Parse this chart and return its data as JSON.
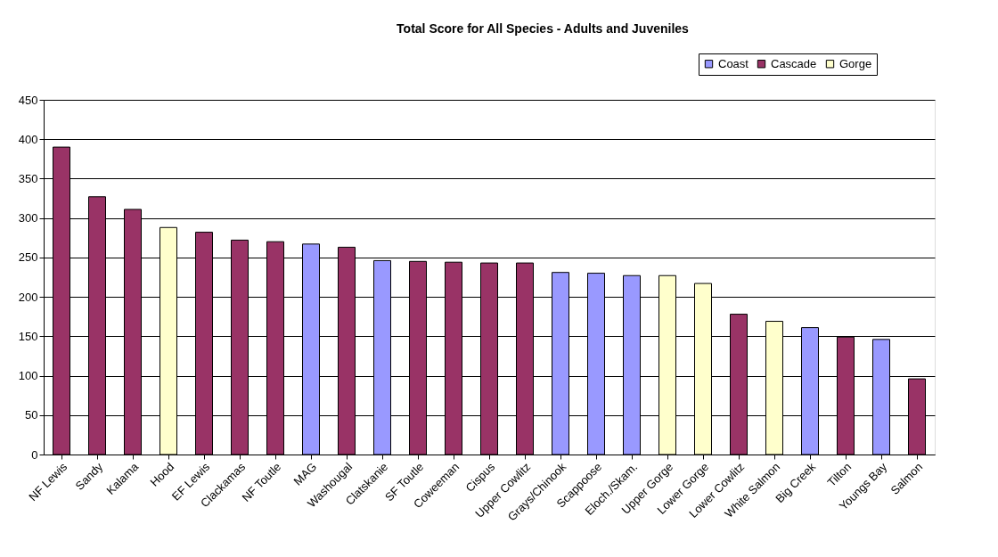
{
  "chart_data": {
    "type": "bar",
    "title": "Total Score for All Species - Adults and Juveniles",
    "categories": [
      "NF Lewis",
      "Sandy",
      "Kalama",
      "Hood",
      "EF Lewis",
      "Clackamas",
      "NF Toutle",
      "MAG",
      "Washougal",
      "Clatskanie",
      "SF Toutle",
      "Coweeman",
      "Cispus",
      "Upper Cowlitz",
      "Grays/Chinook",
      "Scappoose",
      "Eloch./Skam.",
      "Upper Gorge",
      "Lower Gorge",
      "Lower Cowlitz",
      "White Salmon",
      "Big Creek",
      "Tilton",
      "Youngs Bay",
      "Salmon"
    ],
    "series": [
      {
        "name": "Coast",
        "color": "#9999ff",
        "values": [
          null,
          null,
          null,
          null,
          null,
          null,
          null,
          267,
          null,
          246,
          null,
          null,
          null,
          null,
          231,
          230,
          227,
          null,
          null,
          null,
          null,
          161,
          null,
          146,
          null
        ]
      },
      {
        "name": "Cascade",
        "color": "#993366",
        "values": [
          390,
          327,
          311,
          null,
          282,
          272,
          270,
          null,
          263,
          null,
          245,
          244,
          243,
          243,
          null,
          null,
          null,
          null,
          null,
          178,
          null,
          null,
          149,
          null,
          96
        ]
      },
      {
        "name": "Gorge",
        "color": "#ffffcc",
        "values": [
          null,
          null,
          null,
          288,
          null,
          null,
          null,
          null,
          null,
          null,
          null,
          null,
          null,
          null,
          null,
          null,
          null,
          227,
          217,
          null,
          169,
          null,
          null,
          null,
          null
        ]
      }
    ],
    "ylim": [
      0,
      450
    ],
    "yticks": [
      0,
      50,
      100,
      150,
      200,
      250,
      300,
      350,
      400,
      450
    ],
    "grid": "y",
    "legend": "top right"
  }
}
